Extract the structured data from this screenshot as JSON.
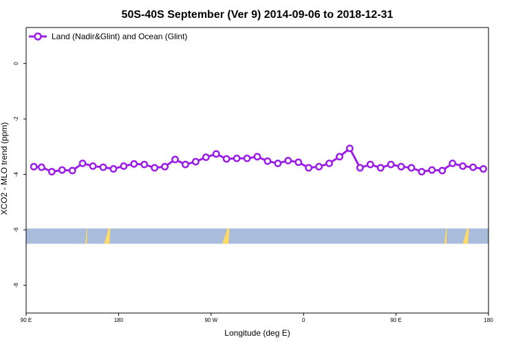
{
  "chart_data": {
    "type": "line",
    "title": "50S-40S September (Ver 9)   2014-09-06 to 2018-12-31",
    "xlabel": "Longitude (deg E)",
    "ylabel": "XCO2 - MLO trend (ppm)",
    "xlim": [
      90,
      540
    ],
    "ylim": [
      -9.0,
      1.3
    ],
    "x_ticks": [
      {
        "value": 90,
        "label": "90 E"
      },
      {
        "value": 180,
        "label": "180"
      },
      {
        "value": 270,
        "label": "90 W"
      },
      {
        "value": 360,
        "label": "0"
      },
      {
        "value": 450,
        "label": "90 E"
      },
      {
        "value": 540,
        "label": "180"
      }
    ],
    "y_ticks": [
      {
        "value": 0,
        "label": "0"
      },
      {
        "value": -2,
        "label": "-2"
      },
      {
        "value": -4,
        "label": "-4"
      },
      {
        "value": -6,
        "label": "-6"
      },
      {
        "value": -8,
        "label": "-8"
      }
    ],
    "legend": {
      "position": "top-left"
    },
    "series": [
      {
        "name": "Land (Nadir&Glint) and Ocean (Glint)",
        "color": "#9a1ee6",
        "x": [
          97.5,
          105,
          115,
          125,
          135,
          145,
          155,
          165,
          175,
          185,
          195,
          205,
          215,
          225,
          235,
          245,
          255,
          265,
          275,
          285,
          295,
          305,
          315,
          325,
          335,
          345,
          355,
          365,
          375,
          385,
          395,
          405,
          415,
          425,
          435,
          445,
          455,
          465,
          475,
          485,
          495,
          505,
          515,
          525,
          535
        ],
        "y": [
          -3.72,
          -3.74,
          -3.9,
          -3.84,
          -3.86,
          -3.6,
          -3.7,
          -3.74,
          -3.8,
          -3.7,
          -3.62,
          -3.64,
          -3.76,
          -3.72,
          -3.46,
          -3.64,
          -3.54,
          -3.38,
          -3.26,
          -3.44,
          -3.42,
          -3.42,
          -3.36,
          -3.52,
          -3.6,
          -3.5,
          -3.56,
          -3.76,
          -3.72,
          -3.6,
          -3.36,
          -3.06,
          -3.76,
          -3.64,
          -3.76,
          -3.64,
          -3.72,
          -3.76,
          -3.9,
          -3.84,
          -3.86,
          -3.6,
          -3.7,
          -3.74,
          -3.8
        ]
      }
    ],
    "map_strip": {
      "y_range": [
        -6.5,
        -5.95
      ],
      "ocean_color": "#a9bcdc",
      "land_color": "#ffd966",
      "land_x_ranges": [
        [
          147.5,
          149.5
        ],
        [
          166,
          172
        ],
        [
          281,
          288
        ],
        [
          497,
          499.5
        ],
        [
          515,
          521
        ]
      ]
    }
  }
}
